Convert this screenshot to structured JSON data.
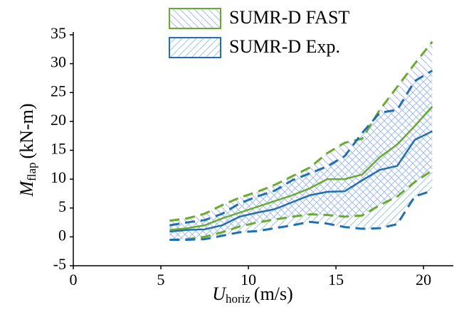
{
  "chart_data": {
    "type": "band-line",
    "x": [
      5.5,
      6.5,
      7.5,
      8.5,
      9.5,
      10.5,
      11.5,
      12.5,
      13.5,
      14.5,
      15.5,
      16.5,
      17.5,
      18.5,
      19.5,
      20.5
    ],
    "series": [
      {
        "name": "SUMR-D FAST",
        "color": "#6aab2e",
        "hatch_color": "#aab4e8",
        "values": [
          1.2,
          1.5,
          2.0,
          3.2,
          4.2,
          5.2,
          6.2,
          7.2,
          8.4,
          10.0,
          10.0,
          10.8,
          13.8,
          16.0,
          19.2,
          22.6
        ],
        "upper": [
          2.8,
          3.2,
          4.0,
          5.5,
          6.8,
          7.8,
          9.0,
          10.5,
          12.0,
          14.5,
          16.3,
          17.0,
          22.0,
          26.0,
          30.0,
          33.8
        ],
        "lower": [
          -0.5,
          -0.4,
          0.0,
          0.8,
          1.8,
          2.5,
          3.0,
          3.5,
          3.9,
          3.8,
          3.5,
          3.7,
          5.5,
          7.0,
          9.5,
          11.5
        ]
      },
      {
        "name": "SUMR-D Exp.",
        "color": "#1f6fb2",
        "hatch_color": "#8ccbee",
        "values": [
          0.9,
          1.2,
          1.3,
          2.0,
          3.5,
          4.2,
          4.8,
          6.0,
          7.2,
          7.8,
          7.9,
          9.8,
          11.6,
          12.3,
          16.8,
          18.3
        ],
        "upper": [
          2.0,
          2.5,
          2.9,
          4.0,
          5.8,
          7.0,
          8.0,
          9.8,
          11.0,
          12.2,
          14.0,
          18.0,
          21.5,
          22.0,
          27.0,
          28.8
        ],
        "lower": [
          -0.5,
          -0.5,
          -0.4,
          0.2,
          0.8,
          1.0,
          1.5,
          2.0,
          2.6,
          2.3,
          1.7,
          1.4,
          1.5,
          2.2,
          7.0,
          8.0
        ]
      }
    ],
    "xlabel": {
      "symbol": "U",
      "subscript": "horiz",
      "unit": "(m/s)"
    },
    "ylabel": {
      "symbol": "M",
      "subscript": "flap",
      "unit": "(kN-m)"
    },
    "xlim": [
      0,
      21.7
    ],
    "ylim": [
      -5,
      35
    ],
    "xticks": [
      0,
      5,
      10,
      15,
      20
    ],
    "yticks": [
      -5,
      0,
      5,
      10,
      15,
      20,
      25,
      30,
      35
    ]
  }
}
